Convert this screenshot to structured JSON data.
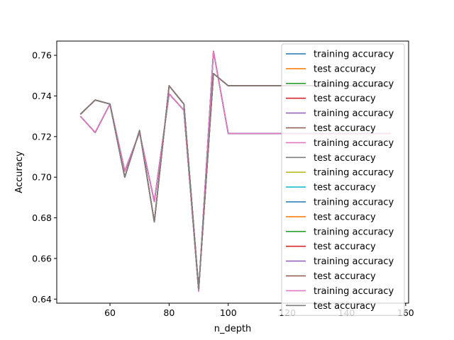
{
  "chart_data": {
    "type": "line",
    "xlabel": "n_depth",
    "ylabel": "Accuracy",
    "xlim": [
      42,
      161
    ],
    "ylim": [
      0.638,
      0.767
    ],
    "xticks": [
      60,
      80,
      100,
      120,
      140,
      160
    ],
    "yticks": [
      0.64,
      0.66,
      0.68,
      0.7,
      0.72,
      0.74,
      0.76
    ],
    "ytick_labels": [
      "0.64",
      "0.66",
      "0.68",
      "0.70",
      "0.72",
      "0.74",
      "0.76"
    ],
    "legend_placement": "upper-right",
    "x": [
      50,
      55,
      60,
      65,
      70,
      75,
      80,
      85,
      90,
      95,
      100,
      105,
      110,
      115,
      120,
      125,
      130,
      135,
      140,
      145,
      150,
      155
    ],
    "series": [
      {
        "name": "training accuracy",
        "color": "#1f77b4",
        "values": [
          0.73,
          0.722,
          0.736,
          0.703,
          0.722,
          0.688,
          0.741,
          0.733,
          0.644,
          0.762,
          0.7215,
          0.7215,
          0.7215,
          0.7215,
          0.7215,
          0.7215,
          0.7215,
          0.7215,
          0.7215,
          0.7215,
          0.7215,
          0.7215
        ]
      },
      {
        "name": "test accuracy",
        "color": "#ff7f0e",
        "values": [
          0.731,
          0.738,
          0.736,
          0.7,
          0.723,
          0.678,
          0.745,
          0.736,
          0.645,
          0.751,
          0.745,
          0.745,
          0.745,
          0.745,
          0.745,
          0.745,
          0.745,
          0.745,
          0.745,
          0.745,
          0.745,
          0.745
        ]
      },
      {
        "name": "training accuracy",
        "color": "#2ca02c",
        "values": [
          0.73,
          0.722,
          0.736,
          0.703,
          0.722,
          0.688,
          0.741,
          0.733,
          0.644,
          0.762,
          0.7215,
          0.7215,
          0.7215,
          0.7215,
          0.7215,
          0.7215,
          0.7215,
          0.7215,
          0.7215,
          0.7215,
          0.7215,
          0.7215
        ]
      },
      {
        "name": "test accuracy",
        "color": "#d62728",
        "values": [
          0.731,
          0.738,
          0.736,
          0.7,
          0.723,
          0.678,
          0.745,
          0.736,
          0.645,
          0.751,
          0.745,
          0.745,
          0.745,
          0.745,
          0.745,
          0.745,
          0.745,
          0.745,
          0.745,
          0.745,
          0.745,
          0.745
        ]
      },
      {
        "name": "training accuracy",
        "color": "#9467bd",
        "values": [
          0.73,
          0.722,
          0.736,
          0.703,
          0.722,
          0.688,
          0.741,
          0.733,
          0.644,
          0.762,
          0.7215,
          0.7215,
          0.7215,
          0.7215,
          0.7215,
          0.7215,
          0.7215,
          0.7215,
          0.7215,
          0.7215,
          0.7215,
          0.7215
        ]
      },
      {
        "name": "test accuracy",
        "color": "#8c564b",
        "values": [
          0.731,
          0.738,
          0.736,
          0.7,
          0.723,
          0.678,
          0.745,
          0.736,
          0.645,
          0.751,
          0.745,
          0.745,
          0.745,
          0.745,
          0.745,
          0.745,
          0.745,
          0.745,
          0.745,
          0.745,
          0.745,
          0.745
        ]
      },
      {
        "name": "training accuracy",
        "color": "#e377c2",
        "values": [
          0.73,
          0.722,
          0.736,
          0.703,
          0.722,
          0.688,
          0.741,
          0.733,
          0.644,
          0.762,
          0.7215,
          0.7215,
          0.7215,
          0.7215,
          0.7215,
          0.7215,
          0.7215,
          0.7215,
          0.7215,
          0.7215,
          0.7215,
          0.7215
        ]
      },
      {
        "name": "test accuracy",
        "color": "#7f7f7f",
        "values": [
          0.731,
          0.738,
          0.736,
          0.7,
          0.723,
          0.678,
          0.745,
          0.736,
          0.645,
          0.751,
          0.745,
          0.745,
          0.745,
          0.745,
          0.745,
          0.745,
          0.745,
          0.745,
          0.745,
          0.745,
          0.745,
          0.745
        ]
      },
      {
        "name": "training accuracy",
        "color": "#bcbd22",
        "values": [
          0.73,
          0.722,
          0.736,
          0.703,
          0.722,
          0.688,
          0.741,
          0.733,
          0.644,
          0.762,
          0.7215,
          0.7215,
          0.7215,
          0.7215,
          0.7215,
          0.7215,
          0.7215,
          0.7215,
          0.7215,
          0.7215,
          0.7215,
          0.7215
        ]
      },
      {
        "name": "test accuracy",
        "color": "#17becf",
        "values": [
          0.731,
          0.738,
          0.736,
          0.7,
          0.723,
          0.678,
          0.745,
          0.736,
          0.645,
          0.751,
          0.745,
          0.745,
          0.745,
          0.745,
          0.745,
          0.745,
          0.745,
          0.745,
          0.745,
          0.745,
          0.745,
          0.745
        ]
      },
      {
        "name": "training accuracy",
        "color": "#1f77b4",
        "values": [
          0.73,
          0.722,
          0.736,
          0.703,
          0.722,
          0.688,
          0.741,
          0.733,
          0.644,
          0.762,
          0.7215,
          0.7215,
          0.7215,
          0.7215,
          0.7215,
          0.7215,
          0.7215,
          0.7215,
          0.7215,
          0.7215,
          0.7215,
          0.7215
        ]
      },
      {
        "name": "test accuracy",
        "color": "#ff7f0e",
        "values": [
          0.731,
          0.738,
          0.736,
          0.7,
          0.723,
          0.678,
          0.745,
          0.736,
          0.645,
          0.751,
          0.745,
          0.745,
          0.745,
          0.745,
          0.745,
          0.745,
          0.745,
          0.745,
          0.745,
          0.745,
          0.745,
          0.745
        ]
      },
      {
        "name": "training accuracy",
        "color": "#2ca02c",
        "values": [
          0.73,
          0.722,
          0.736,
          0.703,
          0.722,
          0.688,
          0.741,
          0.733,
          0.644,
          0.762,
          0.7215,
          0.7215,
          0.7215,
          0.7215,
          0.7215,
          0.7215,
          0.7215,
          0.7215,
          0.7215,
          0.7215,
          0.7215,
          0.7215
        ]
      },
      {
        "name": "test accuracy",
        "color": "#d62728",
        "values": [
          0.731,
          0.738,
          0.736,
          0.7,
          0.723,
          0.678,
          0.745,
          0.736,
          0.645,
          0.751,
          0.745,
          0.745,
          0.745,
          0.745,
          0.745,
          0.745,
          0.745,
          0.745,
          0.745,
          0.745,
          0.745,
          0.745
        ]
      },
      {
        "name": "training accuracy",
        "color": "#9467bd",
        "values": [
          0.73,
          0.722,
          0.736,
          0.703,
          0.722,
          0.688,
          0.741,
          0.733,
          0.644,
          0.762,
          0.7215,
          0.7215,
          0.7215,
          0.7215,
          0.7215,
          0.7215,
          0.7215,
          0.7215,
          0.7215,
          0.7215,
          0.7215,
          0.7215
        ]
      },
      {
        "name": "test accuracy",
        "color": "#8c564b",
        "values": [
          0.731,
          0.738,
          0.736,
          0.7,
          0.723,
          0.678,
          0.745,
          0.736,
          0.645,
          0.751,
          0.745,
          0.745,
          0.745,
          0.745,
          0.745,
          0.745,
          0.745,
          0.745,
          0.745,
          0.745,
          0.745,
          0.745
        ]
      },
      {
        "name": "training accuracy",
        "color": "#e377c2",
        "values": [
          0.73,
          0.722,
          0.736,
          0.703,
          0.722,
          0.688,
          0.741,
          0.733,
          0.644,
          0.762,
          0.7215,
          0.7215,
          0.7215,
          0.7215,
          0.7215,
          0.7215,
          0.7215,
          0.7215,
          0.7215,
          0.7215,
          0.7215,
          0.7215
        ]
      },
      {
        "name": "test accuracy",
        "color": "#7f7f7f",
        "values": [
          0.731,
          0.738,
          0.736,
          0.7,
          0.723,
          0.678,
          0.745,
          0.736,
          0.645,
          0.751,
          0.745,
          0.745,
          0.745,
          0.745,
          0.745,
          0.745,
          0.745,
          0.745,
          0.745,
          0.745,
          0.745,
          0.745
        ]
      }
    ]
  }
}
